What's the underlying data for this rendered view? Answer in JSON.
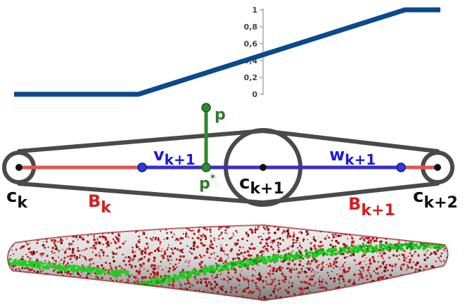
{
  "colors": {
    "blend_curve": "#0a4a8c",
    "axis": "#aaaaaa",
    "tick_text": "#444444",
    "capsule_outline": "#4a4a4a",
    "bone_red": "#e05555",
    "bone_blue": "#3a2fc4",
    "point_green": "#2e8a2e",
    "label_black": "#111111",
    "label_red": "#d42020",
    "label_blue": "#1c1cd8",
    "label_green": "#2e7a2e",
    "mesh_red": "#b01010",
    "mesh_green": "#22cc22",
    "mesh_gray": "#d8d8d8"
  },
  "blend_plot": {
    "y_ticks": [
      "1",
      "0,8",
      "0,6",
      "0,4",
      "0,2",
      "0"
    ],
    "y_values": [
      1,
      0.8,
      0.6,
      0.4,
      0.2,
      0
    ],
    "curve": [
      [
        0,
        0
      ],
      [
        0.35,
        0
      ],
      [
        1.1,
        1
      ],
      [
        1.2,
        1
      ]
    ]
  },
  "labels": {
    "p": {
      "main": "p",
      "sup": ""
    },
    "p_star": {
      "main": "p",
      "sup": "*"
    },
    "v": {
      "main": "v",
      "sub": "k+1"
    },
    "w": {
      "main": "w",
      "sub": "k+1"
    },
    "ck": {
      "main": "c",
      "sub": "k"
    },
    "ck1": {
      "main": "c",
      "sub": "k+1"
    },
    "ck2": {
      "main": "c",
      "sub": "k+2"
    },
    "bk": {
      "main": "B",
      "sub": "k"
    },
    "bk1": {
      "main": "B",
      "sub": "k+1"
    }
  },
  "icons": {
    "surface": "shaded-point-cloud-mesh"
  }
}
